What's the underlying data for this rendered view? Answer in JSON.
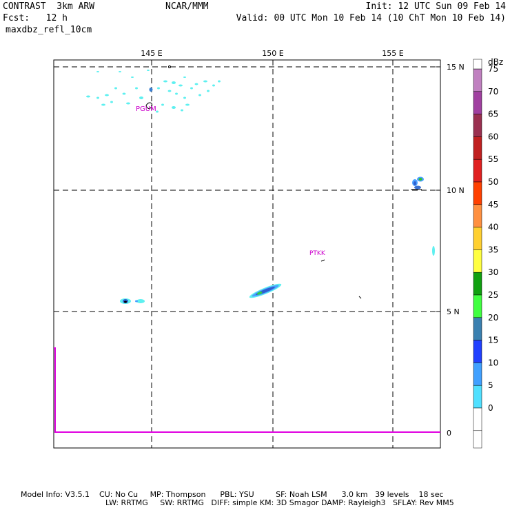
{
  "header": {
    "model": "CONTRAST  3km ARW",
    "org": "NCAR/MMM",
    "init": "Init: 12 UTC Sun 09 Feb 14",
    "fcst": "Fcst:   12 h",
    "valid": "Valid: 00 UTC Mon 10 Feb 14 (10 ChT Mon 10 Feb 14)",
    "field": "maxdbz_refl_10cm"
  },
  "map": {
    "lon_labels": [
      "145 E",
      "150 E",
      "155 E"
    ],
    "lat_labels": [
      "15 N",
      "10 N",
      "5 N",
      "0"
    ],
    "stations": [
      "PGUM",
      "PTKK"
    ]
  },
  "colorbar": {
    "unit": "dBz",
    "levels": [
      "75",
      "70",
      "65",
      "60",
      "55",
      "50",
      "45",
      "40",
      "35",
      "30",
      "25",
      "20",
      "15",
      "10",
      "5",
      "0"
    ],
    "colors": [
      "#c080c0",
      "#a040a0",
      "#9a3050",
      "#c02020",
      "#e02020",
      "#ff4000",
      "#ff9040",
      "#ffd030",
      "#ffff40",
      "#10a010",
      "#40ff40",
      "#3a80b0",
      "#2040ff",
      "#40a0ff",
      "#50e0ff",
      "#ffffff"
    ]
  },
  "footer": {
    "line1": "Model Info: V3.5.1    CU: No Cu     MP: Thompson      PBL: YSU         SF: Noah LSM      3.0 km   39 levels    18 sec",
    "line2": "LW: RRTMG     SW: RRTMG   DIFF: simple KM: 3D Smagor DAMP: Rayleigh3   SFLAY: Rev MM5"
  }
}
